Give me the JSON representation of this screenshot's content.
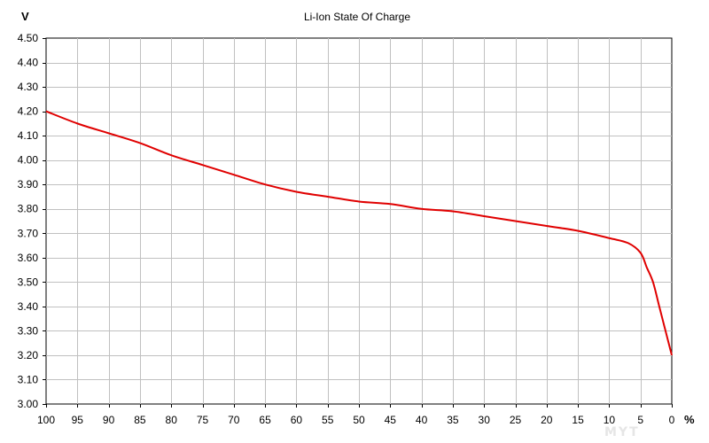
{
  "chart_data": {
    "type": "line",
    "title": "Li-Ion State Of Charge",
    "ylabel": "V",
    "xlabel": "%",
    "xlim": [
      100,
      0
    ],
    "x_reversed": true,
    "ylim": [
      3.0,
      4.5
    ],
    "grid": true,
    "x_ticks": [
      "100",
      "95",
      "90",
      "85",
      "80",
      "75",
      "70",
      "65",
      "60",
      "55",
      "50",
      "45",
      "40",
      "35",
      "30",
      "25",
      "20",
      "15",
      "10",
      "5",
      "0"
    ],
    "y_ticks": [
      "4.50",
      "4.40",
      "4.30",
      "4.20",
      "4.10",
      "4.00",
      "3.90",
      "3.80",
      "3.70",
      "3.60",
      "3.50",
      "3.40",
      "3.30",
      "3.20",
      "3.10",
      "3.00"
    ],
    "series": [
      {
        "color": "#e00000",
        "x": [
          100,
          95,
          90,
          85,
          80,
          75,
          70,
          65,
          60,
          55,
          50,
          45,
          40,
          35,
          30,
          25,
          20,
          15,
          10,
          7,
          5,
          4,
          3,
          2,
          1,
          0
        ],
        "y": [
          4.2,
          4.15,
          4.11,
          4.07,
          4.02,
          3.98,
          3.94,
          3.9,
          3.87,
          3.85,
          3.83,
          3.82,
          3.8,
          3.79,
          3.77,
          3.75,
          3.73,
          3.71,
          3.68,
          3.66,
          3.62,
          3.56,
          3.5,
          3.4,
          3.3,
          3.2
        ]
      }
    ]
  },
  "watermark": "MYT"
}
